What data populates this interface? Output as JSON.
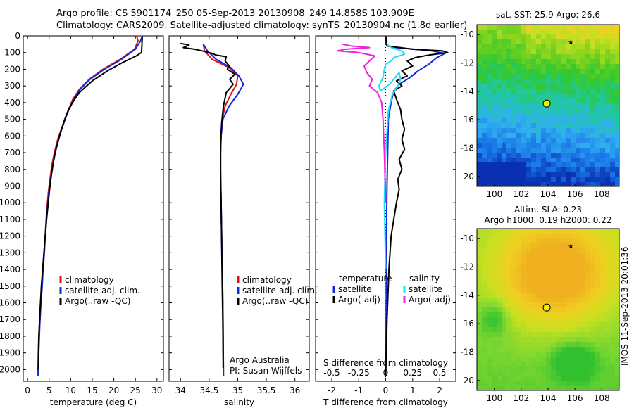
{
  "header": {
    "line1": "Argo profile: CS 5901174_250 05-Sep-2013 20130908_249 14.858S 103.909E",
    "line2": "Climatology: CARS2009. Satellite-adjusted climatology: synTS_20130904.nc (1.8d earlier)"
  },
  "side_stamp": "IMOS 11-Sep-2013 20:01:36",
  "colors": {
    "climatology": "#e01010",
    "satellite": "#1028e0",
    "argo": "#000000",
    "salinity_satellite": "#20e0f0",
    "salinity_argo": "#f020e0"
  },
  "chart_data": [
    {
      "id": "temperature",
      "type": "line",
      "xlabel": "temperature (deg C)",
      "ylabel": "",
      "xlim": [
        -1,
        31.5
      ],
      "ylim": [
        2070,
        0
      ],
      "xticks": [
        0,
        5,
        10,
        15,
        20,
        25,
        30
      ],
      "yticks": [
        0,
        100,
        200,
        300,
        400,
        500,
        600,
        700,
        800,
        900,
        1000,
        1100,
        1200,
        1300,
        1400,
        1500,
        1600,
        1700,
        1800,
        1900,
        2000
      ],
      "legend": [
        "climatology",
        "satellite-adj. clim.",
        "Argo(..raw -QC)"
      ],
      "legend_position": "lower-left",
      "series": [
        {
          "name": "climatology",
          "color": "#e01010",
          "x": [
            25.3,
            25.6,
            24.8,
            21.5,
            17.5,
            14.3,
            12.0,
            10.5,
            9.5,
            8.6,
            7.8,
            7.0,
            6.4,
            5.9,
            5.5,
            5.2,
            4.9,
            4.6,
            4.3,
            4.1,
            3.8,
            3.5,
            3.3,
            3.0,
            2.7,
            2.5,
            2.4
          ],
          "y": [
            0,
            30,
            80,
            140,
            200,
            260,
            320,
            380,
            440,
            500,
            560,
            620,
            680,
            740,
            800,
            860,
            920,
            1000,
            1100,
            1200,
            1300,
            1400,
            1500,
            1600,
            1750,
            1900,
            2040
          ]
        },
        {
          "name": "satellite-adj. clim.",
          "color": "#1028e0",
          "x": [
            26.6,
            26.2,
            25.0,
            21.8,
            17.8,
            14.5,
            12.2,
            10.7,
            9.6,
            8.7,
            7.9,
            7.2,
            6.6,
            6.1,
            5.7,
            5.3,
            5.0,
            4.7,
            4.4,
            4.1,
            3.9,
            3.6,
            3.4,
            3.1,
            2.8,
            2.6,
            2.5
          ],
          "y": [
            0,
            30,
            80,
            140,
            200,
            260,
            320,
            380,
            440,
            500,
            560,
            620,
            680,
            740,
            800,
            860,
            920,
            1000,
            1100,
            1200,
            1300,
            1400,
            1500,
            1600,
            1750,
            1900,
            2040
          ]
        },
        {
          "name": "Argo(..raw -QC)",
          "color": "#000000",
          "x": [
            26.6,
            26.5,
            26.4,
            25.2,
            22.0,
            18.5,
            15.0,
            12.0,
            10.4,
            9.2,
            8.4,
            7.6,
            7.0,
            6.4,
            5.9,
            5.5,
            5.1,
            4.8,
            4.4,
            4.1,
            3.8,
            3.5,
            3.2,
            2.9,
            2.6,
            2.5
          ],
          "y": [
            5,
            60,
            100,
            120,
            160,
            210,
            270,
            340,
            400,
            460,
            520,
            580,
            640,
            700,
            770,
            840,
            920,
            1000,
            1100,
            1200,
            1300,
            1400,
            1500,
            1650,
            1800,
            2000
          ]
        }
      ]
    },
    {
      "id": "salinity",
      "type": "line",
      "xlabel": "salinity",
      "ylabel": "",
      "xlim": [
        33.8,
        36.25
      ],
      "ylim": [
        2070,
        0
      ],
      "xticks": [
        34,
        34.5,
        35,
        35.5,
        36
      ],
      "legend": [
        "climatology",
        "satellite-adj. clim.",
        "Argo(..raw -QC)"
      ],
      "legend_position": "lower-right",
      "annotations": [
        "Argo Australia",
        "PI: Susan Wijffels"
      ],
      "series": [
        {
          "name": "climatology",
          "color": "#e01010",
          "x": [
            34.4,
            34.42,
            34.55,
            34.85,
            35.0,
            34.98,
            34.88,
            34.78,
            34.73,
            34.71,
            34.7,
            34.7,
            34.71,
            34.72,
            34.73,
            34.74,
            34.745,
            34.75
          ],
          "y": [
            50,
            90,
            140,
            190,
            240,
            290,
            350,
            420,
            500,
            600,
            700,
            850,
            1000,
            1200,
            1400,
            1600,
            1800,
            2040
          ]
        },
        {
          "name": "satellite-adj. clim.",
          "color": "#1028e0",
          "x": [
            34.4,
            34.47,
            34.62,
            34.88,
            35.02,
            35.1,
            35.0,
            34.85,
            34.74,
            34.71,
            34.7,
            34.7,
            34.71,
            34.72,
            34.73,
            34.74,
            34.745,
            34.75
          ],
          "y": [
            50,
            90,
            140,
            190,
            240,
            290,
            350,
            420,
            500,
            600,
            700,
            850,
            1000,
            1200,
            1400,
            1600,
            1800,
            2040
          ]
        },
        {
          "name": "Argo(..raw -QC)",
          "color": "#000000",
          "x": [
            34.0,
            34.15,
            34.05,
            34.25,
            34.38,
            34.55,
            34.62,
            34.8,
            34.78,
            34.85,
            34.82,
            34.95,
            34.86,
            34.92,
            34.8,
            34.75,
            34.72,
            34.7,
            34.7,
            34.71,
            34.72,
            34.73,
            34.74,
            34.745
          ],
          "y": [
            45,
            55,
            70,
            80,
            90,
            105,
            115,
            125,
            150,
            180,
            200,
            230,
            260,
            290,
            340,
            420,
            520,
            640,
            800,
            1000,
            1250,
            1500,
            1750,
            1990
          ]
        }
      ]
    },
    {
      "id": "difference",
      "type": "line",
      "xlabel": "T difference from climatology",
      "ylabel": "",
      "top_axis_label": "S difference from climatology",
      "xlim": [
        -2.6,
        2.6
      ],
      "ylim": [
        2070,
        0
      ],
      "xticks": [
        -2,
        -1,
        0,
        1,
        2
      ],
      "top_ticks": [
        "-0.5",
        "-0.25",
        "0",
        "0.25",
        "0.5"
      ],
      "legend_headers": [
        "temperature",
        "salinity"
      ],
      "legend": [
        "satellite",
        "Argo(-adj)",
        "satellite",
        "Argo(-adj)"
      ],
      "legend_position": "lower-center",
      "series": [
        {
          "name": "temperature satellite",
          "color": "#1028e0",
          "x": [
            0.0,
            0.0,
            0.05,
            0.4,
            1.1,
            1.7,
            2.2,
            1.9,
            1.6,
            1.2,
            0.9,
            0.5,
            0.3,
            0.2,
            0.1,
            0.08,
            0.05,
            0.03,
            0.02,
            0.0
          ],
          "y": [
            0,
            40,
            60,
            70,
            80,
            90,
            105,
            130,
            170,
            210,
            250,
            290,
            330,
            400,
            500,
            650,
            900,
            1200,
            1600,
            2040
          ]
        },
        {
          "name": "temperature Argo(-adj)",
          "color": "#000000",
          "x": [
            0.0,
            0.05,
            1.0,
            2.1,
            2.3,
            1.6,
            1.1,
            0.8,
            1.0,
            0.6,
            0.8,
            0.4,
            0.6,
            0.3,
            0.4,
            0.55,
            0.6,
            0.7,
            0.6,
            0.7,
            0.5,
            0.6,
            0.45,
            0.5,
            0.4,
            0.3,
            0.2,
            0.12,
            0.05,
            0.0
          ],
          "y": [
            0,
            60,
            80,
            90,
            100,
            115,
            130,
            150,
            180,
            210,
            240,
            270,
            300,
            330,
            380,
            440,
            500,
            560,
            620,
            680,
            740,
            800,
            860,
            920,
            1000,
            1100,
            1200,
            1400,
            1700,
            2040
          ]
        },
        {
          "name": "salinity satellite",
          "color": "#20e0f0",
          "x": [
            0.05,
            0.2,
            0.6,
            0.7,
            0.3,
            0.2,
            0.0,
            -0.05,
            -0.1,
            -0.25,
            -0.2,
            0.15,
            0.35,
            0.5,
            0.55,
            0.45,
            0.25,
            0.1,
            0.0,
            -0.05,
            0.0
          ],
          "y": [
            50,
            70,
            90,
            110,
            130,
            150,
            170,
            200,
            250,
            300,
            330,
            290,
            250,
            220,
            260,
            300,
            350,
            450,
            700,
            1000,
            1400
          ]
        },
        {
          "name": "salinity Argo(-adj)",
          "color": "#f020e0",
          "x": [
            -1.6,
            -1.3,
            -0.6,
            -1.5,
            -1.8,
            -1.0,
            -0.4,
            -0.6,
            -0.8,
            -0.7,
            -0.5,
            -0.6,
            -0.3,
            -0.15,
            -0.1,
            -0.05,
            0.0
          ],
          "y": [
            50,
            60,
            70,
            80,
            90,
            100,
            120,
            150,
            180,
            220,
            260,
            300,
            340,
            400,
            500,
            700,
            1000
          ]
        }
      ]
    },
    {
      "id": "sst_map",
      "type": "heatmap",
      "title": "sat. SST: 25.9 Argo: 26.6",
      "xlim": [
        98.7,
        109.3
      ],
      "ylim": [
        -20.7,
        -9.3
      ],
      "xticks": [
        100,
        102,
        104,
        106,
        108
      ],
      "yticks": [
        -10,
        -12,
        -14,
        -16,
        -18,
        -20
      ],
      "markers": [
        {
          "lon": 103.9,
          "lat": -14.86,
          "style": "circle"
        },
        {
          "lon": 105.7,
          "lat": -10.5,
          "style": "star"
        }
      ],
      "colors": [
        "#0830b0",
        "#1a78e8",
        "#30b0f0",
        "#20c8a0",
        "#30c830",
        "#70d020",
        "#c0e020",
        "#f0d020"
      ]
    },
    {
      "id": "sla_map",
      "type": "heatmap",
      "title": "Altim. SLA: 0.23",
      "subtitle": "Argo h1000: 0.19 h2000: 0.22",
      "xlim": [
        98.7,
        109.3
      ],
      "ylim": [
        -20.7,
        -9.3
      ],
      "xticks": [
        100,
        102,
        104,
        106,
        108
      ],
      "yticks": [
        -10,
        -12,
        -14,
        -16,
        -18,
        -20
      ],
      "markers": [
        {
          "lon": 103.9,
          "lat": -14.86,
          "style": "circle"
        },
        {
          "lon": 105.7,
          "lat": -10.5,
          "style": "star"
        }
      ],
      "colors": [
        "#30c030",
        "#80d830",
        "#c8e020",
        "#f0d020",
        "#f0b020"
      ]
    }
  ]
}
